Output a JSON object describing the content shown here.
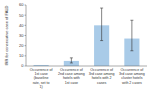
{
  "chart_data": {
    "type": "bar",
    "y_label": "IRR for consecutive case of FALD",
    "categories": [
      "Occurrence of 1st case (baseline rate, set to 1)",
      "Occurrence of 2nd case among hotels with 1st case",
      "Occurrence of 3rd case among hotels with 2 cases",
      "Occurrence of 3rd case among cluster hotels with 2 cases"
    ],
    "values": [
      1,
      5,
      40,
      27
    ],
    "ci_low": [
      null,
      3,
      25,
      15
    ],
    "ci_high": [
      null,
      8,
      57,
      45
    ],
    "color": "#a9cbe8",
    "ylim": [
      0,
      60
    ],
    "yticks": [
      0,
      10,
      20,
      30,
      40,
      50,
      60
    ],
    "grid": false
  }
}
